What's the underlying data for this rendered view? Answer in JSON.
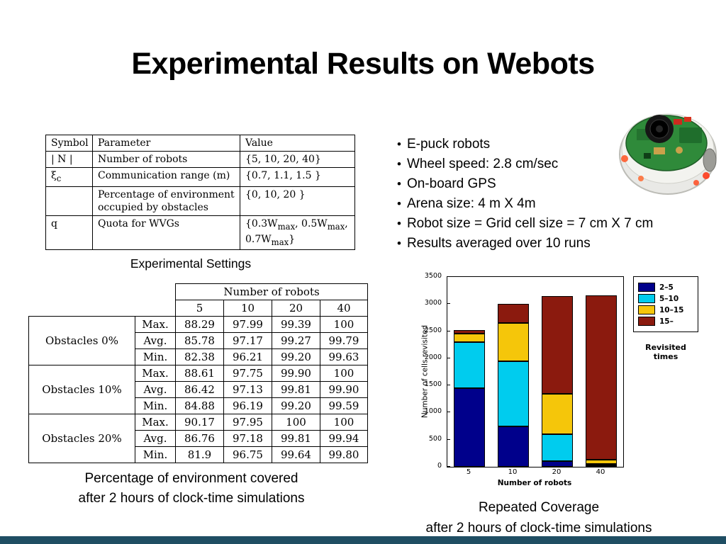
{
  "slide": {
    "title": "Experimental Results on Webots"
  },
  "settings_table": {
    "headers": [
      "Symbol",
      "Parameter",
      "Value"
    ],
    "rows": [
      {
        "symbol": "| N |",
        "parameter": "Number of robots",
        "value": "{5, 10, 20, 40}"
      },
      {
        "symbol": "ξ_{c}",
        "parameter": "Communication range (m)",
        "value": "{0.7, 1.1, 1.5 }"
      },
      {
        "symbol": "",
        "parameter": "Percentage of environment occupied by obstacles",
        "value": "{0, 10, 20 }"
      },
      {
        "symbol": "q",
        "parameter": "Quota for WVGs",
        "value": "{0.3W_{max}, 0.5W_{max}, 0.7W_{max}}"
      }
    ],
    "caption": "Experimental Settings"
  },
  "bullets": [
    "E-puck robots",
    "Wheel speed: 2.8 cm/sec",
    "On-board GPS",
    "Arena size: 4 m X 4m",
    "Robot size = Grid cell size = 7 cm X 7 cm",
    "Results averaged over 10 runs"
  ],
  "coverage_table": {
    "header_group": "Number of robots",
    "col_headers": [
      "5",
      "10",
      "20",
      "40"
    ],
    "groups": [
      {
        "label": "Obstacles 0%",
        "rows": [
          {
            "stat": "Max.",
            "values": [
              "88.29",
              "97.99",
              "99.39",
              "100"
            ]
          },
          {
            "stat": "Avg.",
            "values": [
              "85.78",
              "97.17",
              "99.27",
              "99.79"
            ]
          },
          {
            "stat": "Min.",
            "values": [
              "82.38",
              "96.21",
              "99.20",
              "99.63"
            ]
          }
        ]
      },
      {
        "label": "Obstacles 10%",
        "rows": [
          {
            "stat": "Max.",
            "values": [
              "88.61",
              "97.75",
              "99.90",
              "100"
            ]
          },
          {
            "stat": "Avg.",
            "values": [
              "86.42",
              "97.13",
              "99.81",
              "99.90"
            ]
          },
          {
            "stat": "Min.",
            "values": [
              "84.88",
              "96.19",
              "99.20",
              "99.59"
            ]
          }
        ]
      },
      {
        "label": "Obstacles 20%",
        "rows": [
          {
            "stat": "Max.",
            "values": [
              "90.17",
              "97.95",
              "100",
              "100"
            ]
          },
          {
            "stat": "Avg.",
            "values": [
              "86.76",
              "97.18",
              "99.81",
              "99.94"
            ]
          },
          {
            "stat": "Min.",
            "values": [
              "81.9",
              "96.75",
              "99.64",
              "99.80"
            ]
          }
        ]
      }
    ]
  },
  "coverage_caption_line1": "Percentage of environment covered",
  "coverage_caption_line2": "after 2 hours of clock-time simulations",
  "chart_caption_line1": "Repeated Coverage",
  "chart_caption_line2": "after 2 hours of clock-time simulations",
  "chart_data": {
    "type": "bar",
    "stacked": true,
    "categories": [
      "5",
      "10",
      "20",
      "40"
    ],
    "series": [
      {
        "name": "2–5",
        "color": "#00008B",
        "values": [
          1450,
          750,
          100,
          25
        ]
      },
      {
        "name": "5–10",
        "color": "#00CCEE",
        "values": [
          850,
          1200,
          500,
          30
        ]
      },
      {
        "name": "10–15",
        "color": "#F5C60A",
        "values": [
          150,
          700,
          750,
          70
        ]
      },
      {
        "name": "15–",
        "color": "#8B1A0E",
        "values": [
          70,
          350,
          1800,
          3030
        ]
      }
    ],
    "xlabel": "Number of robots",
    "ylabel": "Number of cells revisited",
    "ylim": [
      0,
      3500
    ],
    "yticks": [
      0,
      500,
      1000,
      1500,
      2000,
      2500,
      3000,
      3500
    ],
    "legend_title": "Revisited times",
    "legend_position": "outside-right"
  },
  "theme": {
    "footer_bar_color": "#1F4E63"
  }
}
